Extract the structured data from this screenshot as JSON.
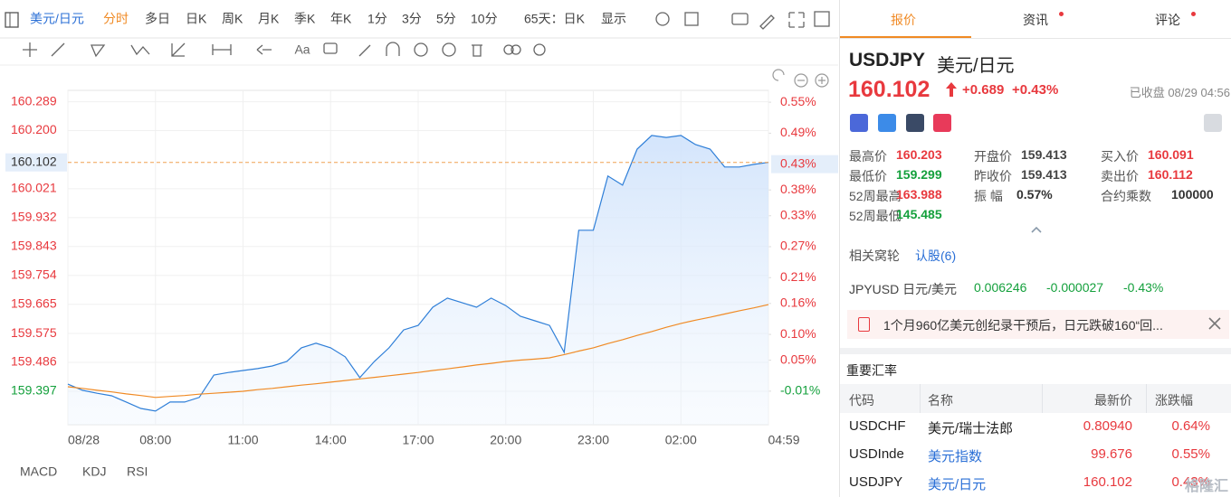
{
  "toolbar": {
    "periods": [
      "美元/日元",
      "分时",
      "多日",
      "日K",
      "周K",
      "月K",
      "季K",
      "年K",
      "1分",
      "3分",
      "5分",
      "10分",
      "65天：日K",
      "显示"
    ],
    "text_tool": "Aa"
  },
  "chart_data": {
    "type": "line",
    "x": [
      "05:00",
      "05:30",
      "06:00",
      "06:30",
      "07:00",
      "07:30",
      "08:00",
      "08:30",
      "09:00",
      "09:30",
      "10:00",
      "10:30",
      "11:00",
      "11:30",
      "12:00",
      "12:30",
      "13:00",
      "13:30",
      "14:00",
      "14:30",
      "15:00",
      "15:30",
      "16:00",
      "16:30",
      "17:00",
      "17:30",
      "18:00",
      "18:30",
      "19:00",
      "19:30",
      "20:00",
      "20:30",
      "21:00",
      "21:30",
      "22:00",
      "22:30",
      "23:00",
      "23:30",
      "00:00",
      "00:30",
      "01:00",
      "01:30",
      "02:00",
      "02:30",
      "03:00",
      "03:30",
      "04:00",
      "04:30",
      "04:59"
    ],
    "series": [
      {
        "color": "#2f7fd8",
        "values": [
          159.419,
          159.4,
          159.391,
          159.383,
          159.364,
          159.344,
          159.336,
          159.364,
          159.364,
          159.378,
          159.447,
          159.455,
          159.461,
          159.467,
          159.475,
          159.489,
          159.531,
          159.545,
          159.531,
          159.503,
          159.439,
          159.489,
          159.531,
          159.586,
          159.6,
          159.656,
          159.684,
          159.67,
          159.656,
          159.684,
          159.661,
          159.628,
          159.614,
          159.6,
          159.517,
          159.893,
          159.893,
          160.06,
          160.032,
          160.143,
          160.185,
          160.179,
          160.185,
          160.157,
          160.143,
          160.088,
          160.088,
          160.096,
          160.102
        ]
      },
      {
        "color": "#f08a24",
        "values": [
          159.411,
          159.406,
          159.4,
          159.395,
          159.389,
          159.384,
          159.378,
          159.381,
          159.384,
          159.388,
          159.391,
          159.394,
          159.397,
          159.402,
          159.406,
          159.411,
          159.416,
          159.42,
          159.425,
          159.43,
          159.435,
          159.44,
          159.445,
          159.45,
          159.455,
          159.461,
          159.466,
          159.472,
          159.478,
          159.483,
          159.489,
          159.493,
          159.496,
          159.5,
          159.51,
          159.521,
          159.531,
          159.544,
          159.556,
          159.569,
          159.581,
          159.594,
          159.606,
          159.616,
          159.625,
          159.635,
          159.645,
          159.654,
          159.664
        ]
      }
    ],
    "xticks": [
      {
        "value": "05:00",
        "label": "08/28"
      },
      "08:00",
      "11:00",
      "14:00",
      "17:00",
      "20:00",
      "23:00",
      "02:00",
      "04:59"
    ],
    "ylim": [
      159.294,
      160.324
    ],
    "yticks": [
      160.289,
      {
        "value": 160.2,
        "label": "160.200"
      },
      160.021,
      159.932,
      159.843,
      159.754,
      159.665,
      159.575,
      159.486,
      159.397
    ],
    "y2lim": [
      -0.075,
      0.573
    ],
    "y2ticks": [
      {
        "value": 0.55,
        "label": "0.55%"
      },
      {
        "value": 0.49,
        "label": "0.49%"
      },
      {
        "value": 0.38,
        "label": "0.38%"
      },
      {
        "value": 0.33,
        "label": "0.33%"
      },
      {
        "value": 0.27,
        "label": "0.27%"
      },
      {
        "value": 0.21,
        "label": "0.21%"
      },
      {
        "value": 0.16,
        "label": "0.16%"
      },
      {
        "value": 0.1,
        "label": "0.10%"
      },
      {
        "value": 0.05,
        "label": "0.05%"
      },
      {
        "value": -0.01,
        "label": "-0.01%"
      }
    ],
    "last_pct": {
      "value": 0.43,
      "label": "0.43%"
    },
    "grid": true
  },
  "indicators": [
    "MACD",
    "KDJ",
    "RSI"
  ],
  "quote": {
    "tabs": [
      "报价",
      "资讯",
      "评论"
    ],
    "symbol": "USDJPY",
    "name": "美元/日元",
    "price": "160.102",
    "change": "+0.689",
    "change_pct": "+0.43%",
    "status": "已收盘 08/29 04:56",
    "stats": [
      {
        "label": "最高价",
        "value": "160.203"
      },
      {
        "label": "开盘价",
        "value": "159.413"
      },
      {
        "label": "买入价",
        "value": "160.091"
      },
      {
        "label": "最低价",
        "value": "159.299"
      },
      {
        "label": "昨收价",
        "value": "159.413"
      },
      {
        "label": "卖出价",
        "value": "160.112"
      },
      {
        "label": "52周最高",
        "value": "163.988"
      },
      {
        "label": "振 幅",
        "value": "0.57%"
      },
      {
        "label": "合约乘数",
        "value": "100000"
      },
      {
        "label": "52周最低",
        "value": "145.485"
      }
    ],
    "related": {
      "label": "相关窝轮",
      "link": "认股(6)"
    },
    "cross": {
      "symbol": "JPYUSD 日元/美元",
      "price": "0.006246",
      "change": "-0.000027",
      "change_pct": "-0.43%"
    },
    "news": "1个月960亿美元创纪录干预后，日元跌破160“回..."
  },
  "rates": {
    "title": "重要汇率",
    "columns": [
      "代码",
      "名称",
      "最新价",
      "涨跌幅"
    ],
    "rows": [
      [
        "USDCHF",
        "美元/瑞士法郎",
        "0.80940",
        "0.64%"
      ],
      [
        "USDInde",
        "美元指数",
        "99.676",
        "0.55%"
      ],
      [
        "USDJPY",
        "美元/日元",
        "160.102",
        "0.43%"
      ]
    ]
  },
  "watermark": "格隆汇"
}
